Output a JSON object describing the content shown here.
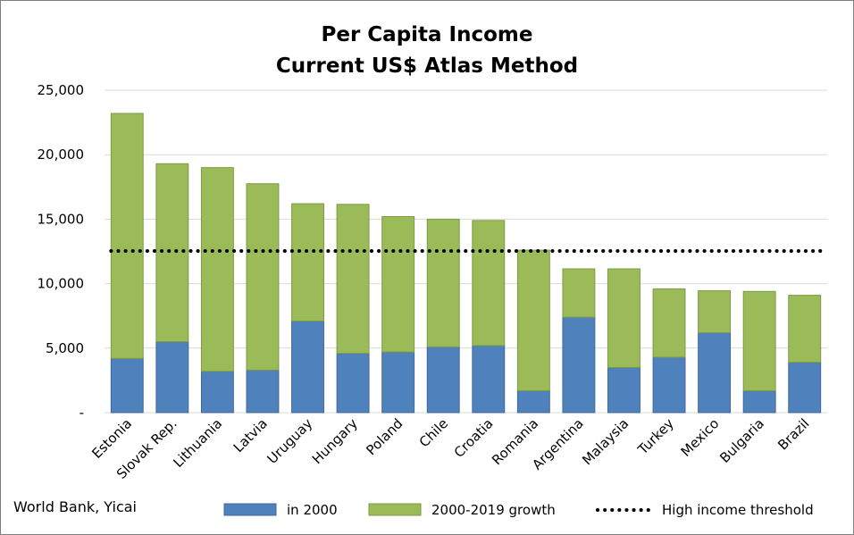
{
  "chart_data": {
    "type": "bar",
    "stacked": true,
    "title": "Per Capita Income",
    "subtitle": "Current US$ Atlas Method",
    "categories": [
      "Estonia",
      "Slovak Rep.",
      "Lithuania",
      "Latvia",
      "Uruguay",
      "Hungary",
      "Poland",
      "Chile",
      "Croatia",
      "Romania",
      "Argentina",
      "Malaysia",
      "Turkey",
      "Mexico",
      "Bulgaria",
      "Brazil"
    ],
    "series": [
      {
        "name": "in 2000",
        "color": "#4f81bd",
        "values": [
          4200,
          5500,
          3200,
          3300,
          7100,
          4600,
          4700,
          5100,
          5200,
          1700,
          7400,
          3500,
          4300,
          6200,
          1700,
          3900
        ]
      },
      {
        "name": "2000-2019 growth",
        "color": "#9bbb59",
        "values": [
          19000,
          13800,
          15800,
          14450,
          9100,
          11550,
          10500,
          9900,
          9700,
          10900,
          3750,
          7650,
          5300,
          3250,
          7700,
          5200
        ]
      }
    ],
    "reference_line": {
      "name": "High income threshold",
      "value": 12535,
      "style": "dotted",
      "color": "#000000"
    },
    "ylim": [
      0,
      25000
    ],
    "yticks": [
      0,
      5000,
      10000,
      15000,
      20000,
      25000
    ],
    "ytick_labels": [
      "-",
      "5,000",
      "10,000",
      "15,000",
      "20,000",
      "25,000"
    ],
    "grid": true,
    "legend_position": "bottom",
    "xlabel": "",
    "ylabel": "",
    "source": "World Bank, Yicai"
  }
}
